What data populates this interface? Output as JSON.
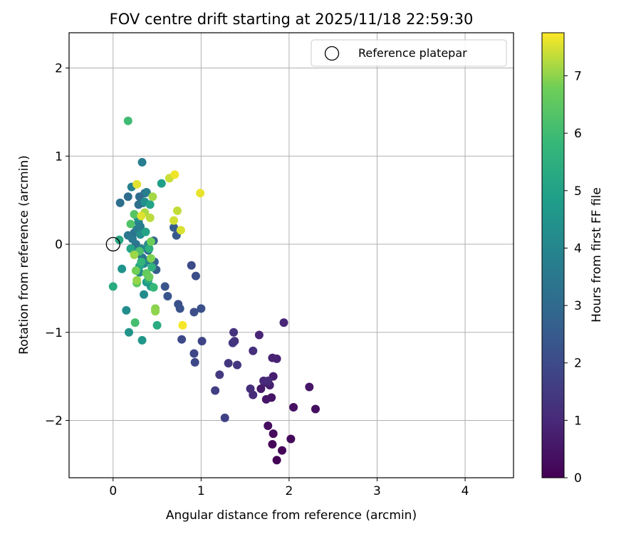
{
  "chart_data": {
    "type": "scatter",
    "title": "FOV centre drift starting at 2025/11/18 22:59:30",
    "xlabel": "Angular distance from reference (arcmin)",
    "ylabel": "Rotation from reference (arcmin)",
    "xlim": [
      -0.5,
      4.55
    ],
    "ylim": [
      -2.65,
      2.4
    ],
    "x_ticks": [
      0,
      1,
      2,
      3,
      4
    ],
    "x_tick_labels": [
      "0",
      "1",
      "2",
      "3",
      "4"
    ],
    "y_ticks": [
      2,
      1,
      0,
      -1,
      -2
    ],
    "y_tick_labels": [
      "2",
      "1",
      "0",
      "−1",
      "−2"
    ],
    "grid": true,
    "legend": {
      "position": "top-right",
      "label": "Reference platepar"
    },
    "reference_point": {
      "x": 0,
      "y": 0
    },
    "colorbar": {
      "label": "Hours from first FF file",
      "colormap": "viridis",
      "range": [
        0,
        7.75
      ],
      "ticks": [
        0,
        1,
        2,
        3,
        4,
        5,
        6,
        7
      ],
      "tick_labels": [
        "0",
        "1",
        "2",
        "3",
        "4",
        "5",
        "6",
        "7"
      ]
    },
    "points": [
      {
        "x": 1.86,
        "y": -2.45,
        "c": 0.05
      },
      {
        "x": 1.92,
        "y": -2.34,
        "c": 0.1
      },
      {
        "x": 1.81,
        "y": -2.27,
        "c": 0.15
      },
      {
        "x": 2.02,
        "y": -2.21,
        "c": 0.2
      },
      {
        "x": 1.82,
        "y": -2.15,
        "c": 0.25
      },
      {
        "x": 1.76,
        "y": -2.06,
        "c": 0.3
      },
      {
        "x": 2.3,
        "y": -1.87,
        "c": 0.35
      },
      {
        "x": 2.05,
        "y": -1.85,
        "c": 0.4
      },
      {
        "x": 1.8,
        "y": -1.74,
        "c": 0.45
      },
      {
        "x": 1.74,
        "y": -1.76,
        "c": 0.5
      },
      {
        "x": 2.23,
        "y": -1.62,
        "c": 0.55
      },
      {
        "x": 1.68,
        "y": -1.64,
        "c": 0.6
      },
      {
        "x": 1.72,
        "y": -1.57,
        "c": 0.65
      },
      {
        "x": 1.82,
        "y": -1.5,
        "c": 0.7
      },
      {
        "x": 1.78,
        "y": -1.6,
        "c": 0.75
      },
      {
        "x": 1.86,
        "y": -1.3,
        "c": 0.8
      },
      {
        "x": 1.81,
        "y": -1.29,
        "c": 0.85
      },
      {
        "x": 1.66,
        "y": -1.03,
        "c": 0.9
      },
      {
        "x": 1.94,
        "y": -0.89,
        "c": 0.95
      },
      {
        "x": 1.71,
        "y": -1.55,
        "c": 1.0
      },
      {
        "x": 1.76,
        "y": -1.55,
        "c": 1.05
      },
      {
        "x": 1.59,
        "y": -1.71,
        "c": 1.1
      },
      {
        "x": 1.56,
        "y": -1.64,
        "c": 1.15
      },
      {
        "x": 1.59,
        "y": -1.21,
        "c": 1.2
      },
      {
        "x": 1.37,
        "y": -1.0,
        "c": 1.25
      },
      {
        "x": 1.38,
        "y": -1.1,
        "c": 1.3
      },
      {
        "x": 1.36,
        "y": -1.12,
        "c": 1.35
      },
      {
        "x": 1.41,
        "y": -1.37,
        "c": 1.4
      },
      {
        "x": 1.31,
        "y": -1.35,
        "c": 1.45
      },
      {
        "x": 1.21,
        "y": -1.48,
        "c": 1.5
      },
      {
        "x": 1.16,
        "y": -1.66,
        "c": 1.6
      },
      {
        "x": 1.27,
        "y": -1.97,
        "c": 1.7
      },
      {
        "x": 1.01,
        "y": -1.1,
        "c": 1.8
      },
      {
        "x": 0.92,
        "y": -1.24,
        "c": 1.85
      },
      {
        "x": 0.93,
        "y": -1.34,
        "c": 1.9
      },
      {
        "x": 0.78,
        "y": -1.08,
        "c": 1.95
      },
      {
        "x": 0.89,
        "y": -0.24,
        "c": 2.0
      },
      {
        "x": 0.92,
        "y": -0.77,
        "c": 2.05
      },
      {
        "x": 0.94,
        "y": -0.36,
        "c": 2.1
      },
      {
        "x": 1.0,
        "y": -0.73,
        "c": 2.15
      },
      {
        "x": 0.74,
        "y": -0.68,
        "c": 2.2
      },
      {
        "x": 0.76,
        "y": -0.73,
        "c": 2.25
      },
      {
        "x": 0.59,
        "y": -0.48,
        "c": 2.3
      },
      {
        "x": 0.62,
        "y": -0.59,
        "c": 2.35
      },
      {
        "x": 0.72,
        "y": 0.1,
        "c": 2.45
      },
      {
        "x": 0.69,
        "y": 0.19,
        "c": 2.55
      },
      {
        "x": 0.49,
        "y": -0.29,
        "c": 2.6
      },
      {
        "x": 0.47,
        "y": -0.2,
        "c": 2.7
      },
      {
        "x": 0.46,
        "y": 0.04,
        "c": 2.8
      },
      {
        "x": 0.4,
        "y": -0.07,
        "c": 2.9
      },
      {
        "x": 0.36,
        "y": 0.58,
        "c": 3.0
      },
      {
        "x": 0.3,
        "y": 0.54,
        "c": 3.05
      },
      {
        "x": 0.17,
        "y": 0.54,
        "c": 3.1
      },
      {
        "x": 0.08,
        "y": 0.47,
        "c": 3.15
      },
      {
        "x": 0.29,
        "y": 0.45,
        "c": 3.2
      },
      {
        "x": 0.34,
        "y": 0.47,
        "c": 3.25
      },
      {
        "x": 0.24,
        "y": 0.13,
        "c": 3.3
      },
      {
        "x": 0.26,
        "y": 0.0,
        "c": 3.35
      },
      {
        "x": 0.33,
        "y": -0.15,
        "c": 3.4
      },
      {
        "x": 0.4,
        "y": -0.18,
        "c": 3.45
      },
      {
        "x": 0.17,
        "y": 0.1,
        "c": 3.5
      },
      {
        "x": 0.22,
        "y": 0.06,
        "c": 3.55
      },
      {
        "x": 0.27,
        "y": 0.17,
        "c": 3.6
      },
      {
        "x": 0.31,
        "y": 0.2,
        "c": 3.65
      },
      {
        "x": 0.33,
        "y": 0.93,
        "c": 3.7
      },
      {
        "x": 0.38,
        "y": 0.59,
        "c": 3.75
      },
      {
        "x": 0.29,
        "y": 0.25,
        "c": 3.8
      },
      {
        "x": 0.21,
        "y": 0.65,
        "c": 3.85
      },
      {
        "x": 0.24,
        "y": -0.09,
        "c": 3.9
      },
      {
        "x": 0.32,
        "y": -0.05,
        "c": 4.0
      },
      {
        "x": 0.4,
        "y": 0.0,
        "c": 4.05
      },
      {
        "x": 0.35,
        "y": -0.22,
        "c": 4.1
      },
      {
        "x": 0.3,
        "y": -0.32,
        "c": 4.15
      },
      {
        "x": 0.35,
        "y": -0.57,
        "c": 4.2
      },
      {
        "x": 0.15,
        "y": -0.75,
        "c": 4.25
      },
      {
        "x": 0.31,
        "y": 0.11,
        "c": 4.3
      },
      {
        "x": 0.28,
        "y": 0.3,
        "c": 4.35
      },
      {
        "x": 0.36,
        "y": 0.48,
        "c": 4.4
      },
      {
        "x": 0.18,
        "y": -1.0,
        "c": 4.45
      },
      {
        "x": 0.1,
        "y": -0.28,
        "c": 4.5
      },
      {
        "x": 0.33,
        "y": -1.09,
        "c": 4.6
      },
      {
        "x": 0.43,
        "y": -0.48,
        "c": 4.65
      },
      {
        "x": 0.38,
        "y": -0.43,
        "c": 4.7
      },
      {
        "x": 0.55,
        "y": 0.69,
        "c": 4.9
      },
      {
        "x": 0.42,
        "y": 0.45,
        "c": 5.0
      },
      {
        "x": 0.37,
        "y": 0.14,
        "c": 5.05
      },
      {
        "x": 0.2,
        "y": -0.05,
        "c": 5.1
      },
      {
        "x": 0.3,
        "y": -0.25,
        "c": 5.15
      },
      {
        "x": 0.07,
        "y": 0.05,
        "c": 5.2
      },
      {
        "x": 0.0,
        "y": -0.48,
        "c": 5.3
      },
      {
        "x": 0.5,
        "y": -0.92,
        "c": 5.35
      },
      {
        "x": 0.4,
        "y": -0.4,
        "c": 5.4
      },
      {
        "x": 0.41,
        "y": -0.05,
        "c": 5.5
      },
      {
        "x": 0.44,
        "y": -0.26,
        "c": 5.6
      },
      {
        "x": 0.32,
        "y": -0.2,
        "c": 5.7
      },
      {
        "x": 0.46,
        "y": -0.49,
        "c": 5.8
      },
      {
        "x": 0.17,
        "y": 1.4,
        "c": 6.0
      },
      {
        "x": 0.25,
        "y": -0.89,
        "c": 6.1
      },
      {
        "x": 0.3,
        "y": -0.08,
        "c": 6.2
      },
      {
        "x": 0.2,
        "y": 0.23,
        "c": 6.3
      },
      {
        "x": 0.24,
        "y": 0.34,
        "c": 6.4
      },
      {
        "x": 0.27,
        "y": -0.44,
        "c": 6.5
      },
      {
        "x": 0.38,
        "y": -0.33,
        "c": 6.6
      },
      {
        "x": 0.41,
        "y": -0.37,
        "c": 6.7
      },
      {
        "x": 0.26,
        "y": -0.3,
        "c": 6.8
      },
      {
        "x": 0.43,
        "y": -0.16,
        "c": 6.9
      },
      {
        "x": 0.48,
        "y": -0.73,
        "c": 6.95
      },
      {
        "x": 0.48,
        "y": -0.76,
        "c": 7.0
      },
      {
        "x": 0.27,
        "y": -0.41,
        "c": 7.05
      },
      {
        "x": 0.24,
        "y": -0.12,
        "c": 7.1
      },
      {
        "x": 0.45,
        "y": 0.54,
        "c": 7.15
      },
      {
        "x": 0.36,
        "y": 0.36,
        "c": 7.2
      },
      {
        "x": 0.42,
        "y": 0.3,
        "c": 7.3
      },
      {
        "x": 0.73,
        "y": 0.38,
        "c": 7.35
      },
      {
        "x": 0.64,
        "y": 0.75,
        "c": 7.4
      },
      {
        "x": 0.69,
        "y": 0.27,
        "c": 7.45
      },
      {
        "x": 0.77,
        "y": 0.16,
        "c": 7.5
      },
      {
        "x": 0.27,
        "y": 0.68,
        "c": 7.55
      },
      {
        "x": 0.99,
        "y": 0.58,
        "c": 7.6
      },
      {
        "x": 0.7,
        "y": 0.79,
        "c": 7.65
      },
      {
        "x": 0.79,
        "y": -0.92,
        "c": 7.7
      },
      {
        "x": 0.32,
        "y": 0.32,
        "c": 7.55
      },
      {
        "x": 0.43,
        "y": 0.03,
        "c": 6.75
      }
    ]
  }
}
